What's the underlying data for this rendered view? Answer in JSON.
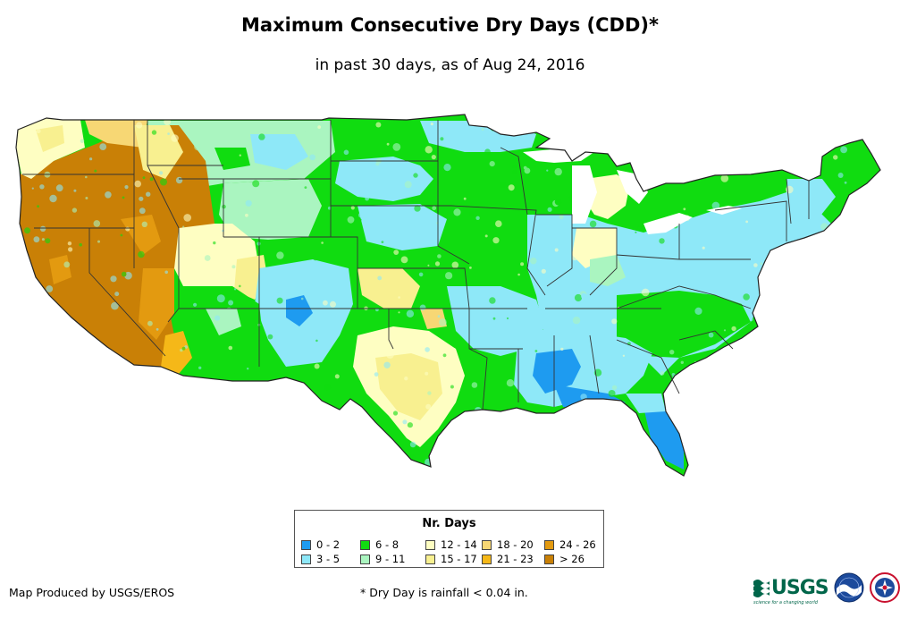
{
  "header": {
    "title": "Maximum Consecutive Dry Days (CDD)*",
    "subtitle": "in past 30 days, as of Aug 24, 2016"
  },
  "map": {
    "region": "Contiguous United States",
    "icon": "us-map-icon"
  },
  "legend": {
    "title": "Nr. Days",
    "items": [
      {
        "label": "0 - 2",
        "color": "#1e9bf0"
      },
      {
        "label": "3 - 5",
        "color": "#8ee8f8"
      },
      {
        "label": "6 - 8",
        "color": "#10dc10"
      },
      {
        "label": "9 - 11",
        "color": "#aaf5c0"
      },
      {
        "label": "12 - 14",
        "color": "#fefec2"
      },
      {
        "label": "15 - 17",
        "color": "#f8f090"
      },
      {
        "label": "18 - 20",
        "color": "#f7d774"
      },
      {
        "label": "21 - 23",
        "color": "#f5b818"
      },
      {
        "label": "24 - 26",
        "color": "#e39a10"
      },
      {
        "label": "> 26",
        "color": "#c98006"
      }
    ]
  },
  "footer": {
    "credit": "Map Produced by USGS/EROS",
    "footnote": "* Dry Day is rainfall < 0.04 in.",
    "logos": {
      "usgs_text": "USGS",
      "usgs_tagline": "science for a changing world",
      "noaa_icon": "noaa-logo-icon",
      "nws_icon": "nws-logo-icon"
    }
  }
}
